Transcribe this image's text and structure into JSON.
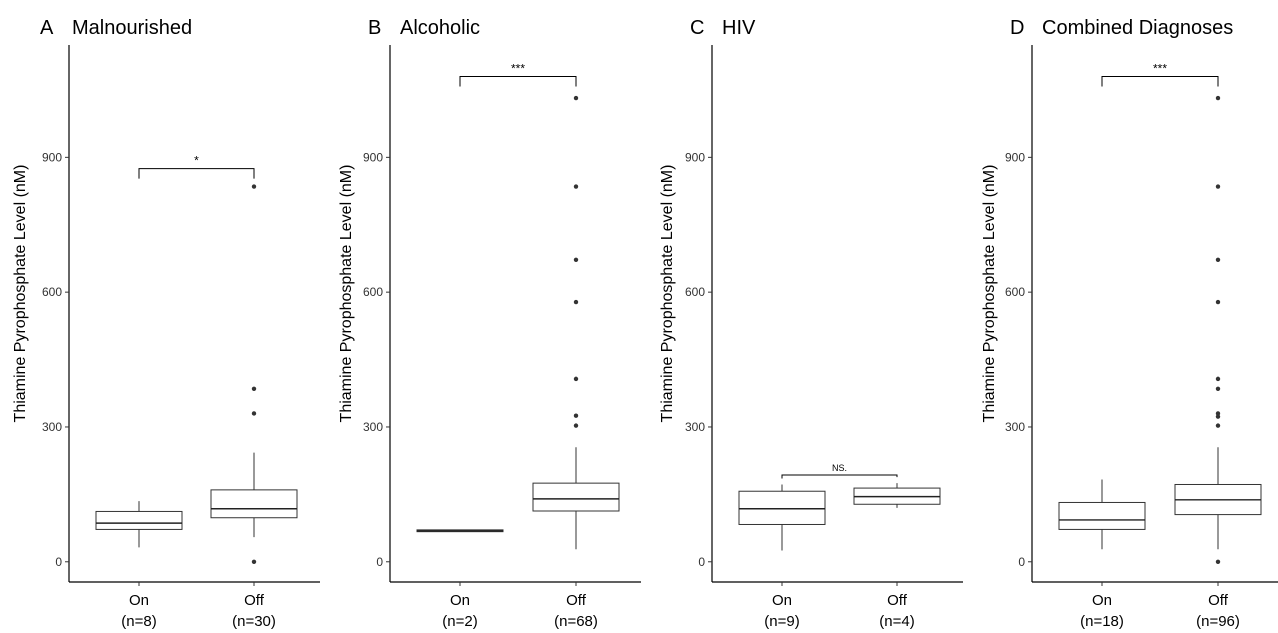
{
  "chart_data": [
    {
      "type": "box",
      "panel_letter": "A",
      "title": "Malnourished",
      "ylabel": "Thiamine Pyrophosphate Level (nM)",
      "xlabel": "",
      "ylim": [
        -45,
        1150
      ],
      "yticks": [
        0,
        300,
        600,
        900
      ],
      "categories": [
        {
          "name": "On",
          "n_label": "(n=8)",
          "min": 32,
          "q1": 72,
          "median": 86,
          "q3": 112,
          "max": 135,
          "outliers": []
        },
        {
          "name": "Off",
          "n_label": "(n=30)",
          "min": 55,
          "q1": 98,
          "median": 118,
          "q3": 160,
          "max": 243,
          "outliers": [
            0,
            330,
            385,
            835
          ]
        }
      ],
      "significance": {
        "label": "*",
        "y": 875
      }
    },
    {
      "type": "box",
      "panel_letter": "B",
      "title": "Alcoholic",
      "ylabel": "Thiamine Pyrophosphate Level (nM)",
      "xlabel": "",
      "ylim": [
        -45,
        1150
      ],
      "yticks": [
        0,
        300,
        600,
        900
      ],
      "categories": [
        {
          "name": "On",
          "n_label": "(n=2)",
          "min": 67,
          "q1": 67,
          "median": 69,
          "q3": 71,
          "max": 71,
          "outliers": []
        },
        {
          "name": "Off",
          "n_label": "(n=68)",
          "min": 28,
          "q1": 113,
          "median": 140,
          "q3": 175,
          "max": 255,
          "outliers": [
            303,
            325,
            407,
            578,
            672,
            835,
            1032
          ]
        }
      ],
      "significance": {
        "label": "***",
        "y": 1080
      }
    },
    {
      "type": "box",
      "panel_letter": "C",
      "title": "HIV",
      "ylabel": "Thiamine Pyrophosphate Level (nM)",
      "xlabel": "",
      "ylim": [
        -45,
        1150
      ],
      "yticks": [
        0,
        300,
        600,
        900
      ],
      "categories": [
        {
          "name": "On",
          "n_label": "(n=9)",
          "min": 25,
          "q1": 83,
          "median": 118,
          "q3": 157,
          "max": 172,
          "outliers": []
        },
        {
          "name": "Off",
          "n_label": "(n=4)",
          "min": 120,
          "q1": 128,
          "median": 145,
          "q3": 164,
          "max": 175,
          "outliers": []
        }
      ],
      "significance": {
        "label": "NS.",
        "y": 193
      }
    },
    {
      "type": "box",
      "panel_letter": "D",
      "title": "Combined Diagnoses",
      "ylabel": "Thiamine Pyrophosphate Level (nM)",
      "xlabel": "",
      "ylim": [
        -45,
        1150
      ],
      "yticks": [
        0,
        300,
        600,
        900
      ],
      "categories": [
        {
          "name": "On",
          "n_label": "(n=18)",
          "min": 28,
          "q1": 72,
          "median": 93,
          "q3": 132,
          "max": 183,
          "outliers": []
        },
        {
          "name": "Off",
          "n_label": "(n=96)",
          "min": 28,
          "q1": 105,
          "median": 138,
          "q3": 172,
          "max": 255,
          "outliers": [
            0,
            303,
            323,
            330,
            385,
            407,
            578,
            672,
            835,
            1032
          ]
        }
      ],
      "significance": {
        "label": "***",
        "y": 1080
      }
    }
  ]
}
